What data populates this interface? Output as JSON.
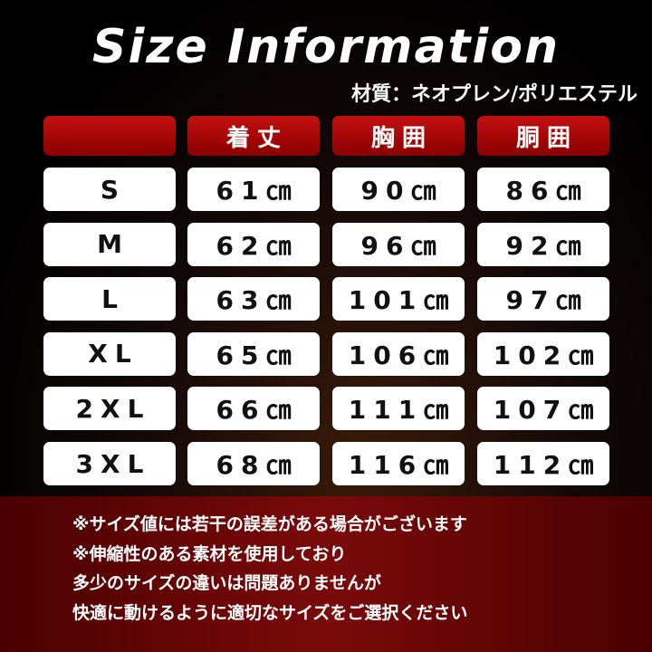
{
  "header": {
    "title": "Size Information",
    "material": "材質：ネオプレン/ポリエステル"
  },
  "table": {
    "columns": [
      "着丈",
      "胸囲",
      "胴囲"
    ],
    "rows": [
      [
        "S",
        "61㎝",
        "90㎝",
        "86㎝"
      ],
      [
        "M",
        "62㎝",
        "96㎝",
        "92㎝"
      ],
      [
        "L",
        "63㎝",
        "101㎝",
        "97㎝"
      ],
      [
        "XL",
        "65㎝",
        "106㎝",
        "102㎝"
      ],
      [
        "2XL",
        "66㎝",
        "111㎝",
        "107㎝"
      ],
      [
        "3XL",
        "68㎝",
        "116㎝",
        "112㎝"
      ]
    ]
  },
  "notes": [
    "※サイズ値には若干の誤差がある場合がございます",
    "※伸縮性のある素材を使用しており",
    "多少のサイズの違いは問題ありませんが",
    "快適に動けるように適切なサイズをご選択ください"
  ]
}
